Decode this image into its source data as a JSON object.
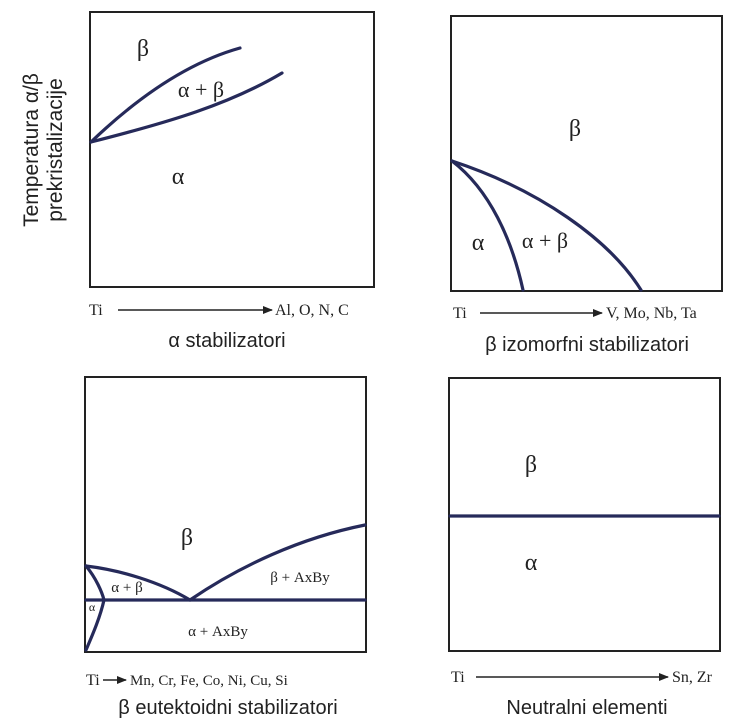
{
  "y_axis_label": [
    "Temperatura α/β",
    "prekristalizacije"
  ],
  "panels": [
    {
      "id": "alpha",
      "regions": {
        "beta": "β",
        "alpha_beta": "α + β",
        "alpha": "α"
      },
      "axis_start": "Ti",
      "axis_end": "Al, O, N, C",
      "caption": "α stabilizatori"
    },
    {
      "id": "beta-isomorphous",
      "regions": {
        "beta": "β",
        "alpha_beta": "α + β",
        "alpha": "α"
      },
      "axis_start": "Ti",
      "axis_end": "V, Mo, Nb, Ta",
      "caption": "β izomorfni stabilizatori"
    },
    {
      "id": "beta-eutectoid",
      "regions": {
        "beta": "β",
        "alpha_beta": "α + β",
        "alpha": "α",
        "beta_axby": "β + AxBy",
        "alpha_axby": "α + AxBy"
      },
      "axis_start": "Ti",
      "axis_end": "Mn, Cr, Fe, Co, Ni, Cu, Si",
      "caption": "β eutektoidni stabilizatori"
    },
    {
      "id": "neutral",
      "regions": {
        "beta": "β",
        "alpha": "α"
      },
      "axis_start": "Ti",
      "axis_end": "Sn, Zr",
      "caption": "Neutralni elementi"
    }
  ],
  "colors": {
    "frame": "#222222",
    "curve": "#262a5a",
    "background": "#ffffff"
  }
}
